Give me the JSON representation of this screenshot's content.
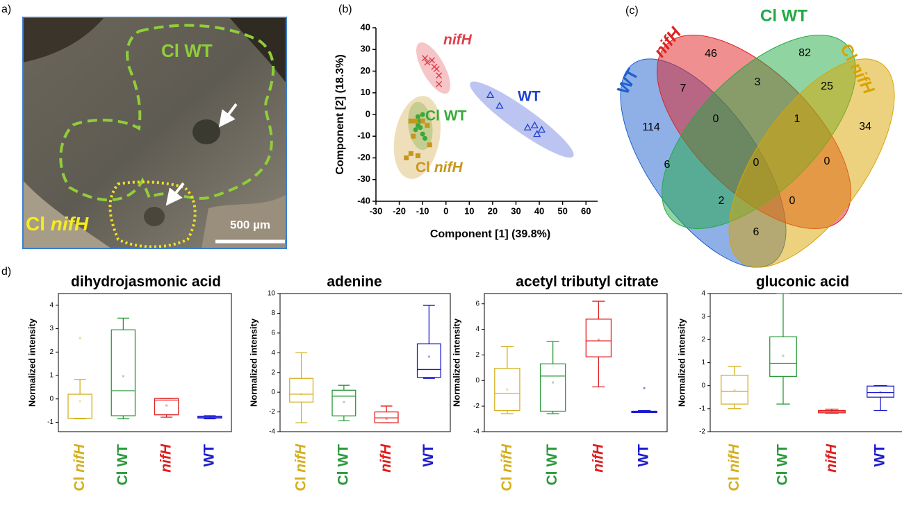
{
  "image_panel": {
    "panel_label": "a)",
    "region_labels": [
      "Cl WT",
      "Cl nifH"
    ],
    "scale_bar_label": "500 µm"
  },
  "chart_data": [
    {
      "type": "scatter",
      "panel_label": "(b)",
      "xlabel": "Component [1] (39.8%)",
      "ylabel": "Component [2] (18.3%)",
      "xlim": [
        -30,
        65
      ],
      "xticks": [
        -30,
        -20,
        -10,
        0,
        10,
        20,
        30,
        40,
        50,
        60
      ],
      "ylim": [
        -40,
        40
      ],
      "yticks": [
        -40,
        -30,
        -20,
        -10,
        0,
        10,
        20,
        30,
        40
      ],
      "series": [
        {
          "name": "nifH",
          "color": "#e0404a",
          "marker": "x",
          "x": [
            -9,
            -8,
            -6,
            -5,
            -4,
            -3,
            -3
          ],
          "y": [
            26,
            24,
            25,
            22,
            21,
            18,
            14
          ]
        },
        {
          "name": "WT",
          "color": "#2040d0",
          "marker": "triangle",
          "x": [
            19,
            23,
            35,
            38,
            39,
            41
          ],
          "y": [
            9,
            4,
            -6,
            -5,
            -9,
            -7
          ]
        },
        {
          "name": "Cl WT",
          "color": "#3aa83a",
          "marker": "circle",
          "x": [
            -12,
            -11,
            -10,
            -11,
            -10,
            -13,
            -9,
            -12
          ],
          "y": [
            -1,
            -3,
            0,
            -6,
            -9,
            -7,
            -11,
            -5
          ]
        },
        {
          "name": "Cl nifH",
          "color": "#c8961a",
          "marker": "square",
          "x": [
            -15,
            -13,
            -10,
            -14,
            -7,
            -17,
            -15,
            -12,
            -8
          ],
          "y": [
            -3,
            -3,
            -3,
            -10,
            -14,
            -20,
            -18,
            -19,
            -5
          ]
        }
      ]
    },
    {
      "type": "venn",
      "panel_label": "(c)",
      "sets": [
        {
          "name": "WT",
          "color": "#1f5fcf"
        },
        {
          "name": "nifH",
          "color": "#e02020"
        },
        {
          "name": "Cl WT",
          "color": "#22aa44"
        },
        {
          "name": "Cl nifH",
          "color": "#d9a400"
        }
      ],
      "values": [
        114,
        46,
        82,
        34,
        7,
        3,
        25,
        0,
        1,
        6,
        0,
        0,
        2,
        0,
        6
      ]
    },
    {
      "type": "box",
      "panel_label": "d)",
      "title": "dihydrojasmonic acid",
      "ylabel": "Normalized intensity",
      "categories": [
        "Cl nifH",
        "Cl WT",
        "nifH",
        "WT"
      ],
      "colors": [
        "#d4b020",
        "#2a9a3a",
        "#e02020",
        "#1a1ad0"
      ],
      "ylim": [
        -1.4,
        4.5
      ],
      "yticks": [
        -1,
        0,
        1,
        2,
        3,
        4
      ],
      "boxes": [
        {
          "min": -0.85,
          "q1": -0.83,
          "median": -0.83,
          "q3": 0.2,
          "max": 0.83,
          "mean": -0.1,
          "outliers": [
            2.6
          ]
        },
        {
          "min": -0.85,
          "q1": -0.72,
          "median": 0.35,
          "q3": 2.95,
          "max": 3.45,
          "mean": 0.97
        },
        {
          "min": -0.78,
          "q1": -0.68,
          "median": -0.05,
          "q3": 0.02,
          "max": 0.02,
          "mean": -0.28
        },
        {
          "min": -0.85,
          "q1": -0.82,
          "median": -0.78,
          "q3": -0.74,
          "max": -0.72,
          "mean": -0.8
        }
      ]
    },
    {
      "type": "box",
      "title": "adenine",
      "ylabel": "Normalized intensity",
      "categories": [
        "Cl nifH",
        "Cl WT",
        "nifH",
        "WT"
      ],
      "colors": [
        "#d4b020",
        "#2a9a3a",
        "#e02020",
        "#1a1ad0"
      ],
      "ylim": [
        -4,
        10
      ],
      "yticks": [
        -4,
        -2,
        0,
        2,
        4,
        6,
        8,
        10
      ],
      "boxes": [
        {
          "min": -3.1,
          "q1": -1.0,
          "median": -0.2,
          "q3": 1.4,
          "max": 4.0,
          "mean": -0.2
        },
        {
          "min": -2.9,
          "q1": -2.4,
          "median": -0.4,
          "q3": 0.2,
          "max": 0.7,
          "mean": -1.0
        },
        {
          "min": -3.1,
          "q1": -3.1,
          "median": -2.6,
          "q3": -2.0,
          "max": -1.4,
          "mean": -2.7
        },
        {
          "min": 1.4,
          "q1": 1.5,
          "median": 2.3,
          "q3": 4.9,
          "max": 8.8,
          "mean": 3.6
        }
      ]
    },
    {
      "type": "box",
      "title": "acetyl tributyl citrate",
      "ylabel": "Normalized intensity",
      "categories": [
        "Cl nifH",
        "Cl WT",
        "nifH",
        "WT"
      ],
      "colors": [
        "#d4b020",
        "#2a9a3a",
        "#e02020",
        "#1a1ad0"
      ],
      "ylim": [
        -4,
        6.8
      ],
      "yticks": [
        -4,
        -2,
        0,
        2,
        4,
        6
      ],
      "boxes": [
        {
          "min": -2.6,
          "q1": -2.35,
          "median": -1.0,
          "q3": 0.95,
          "max": 2.65,
          "mean": -0.7
        },
        {
          "min": -2.6,
          "q1": -2.4,
          "median": 0.35,
          "q3": 1.3,
          "max": 3.05,
          "mean": -0.15
        },
        {
          "min": -0.5,
          "q1": 1.85,
          "median": 3.1,
          "q3": 4.8,
          "max": 6.2,
          "mean": 3.2
        },
        {
          "min": -2.5,
          "q1": -2.5,
          "median": -2.45,
          "q3": -2.4,
          "max": -2.35,
          "mean": -2.45,
          "outliers": [
            -0.6
          ]
        }
      ]
    },
    {
      "type": "box",
      "title": "gluconic acid",
      "ylabel": "Normalized intensity",
      "categories": [
        "Cl nifH",
        "Cl WT",
        "nifH",
        "WT"
      ],
      "colors": [
        "#d4b020",
        "#2a9a3a",
        "#e02020",
        "#1a1ad0"
      ],
      "ylim": [
        -2,
        4
      ],
      "yticks": [
        -2,
        -1,
        0,
        1,
        2,
        3,
        4
      ],
      "boxes": [
        {
          "min": -1.0,
          "q1": -0.8,
          "median": -0.25,
          "q3": 0.45,
          "max": 0.83,
          "mean": -0.2
        },
        {
          "min": -0.8,
          "q1": 0.4,
          "median": 0.97,
          "q3": 2.12,
          "max": 4.0,
          "mean": 1.3
        },
        {
          "min": -1.2,
          "q1": -1.18,
          "median": -1.13,
          "q3": -1.08,
          "max": -1.02,
          "mean": -1.12
        },
        {
          "min": -1.08,
          "q1": -0.5,
          "median": -0.3,
          "q3": -0.02,
          "max": 0.0,
          "mean": -0.28
        }
      ]
    }
  ]
}
